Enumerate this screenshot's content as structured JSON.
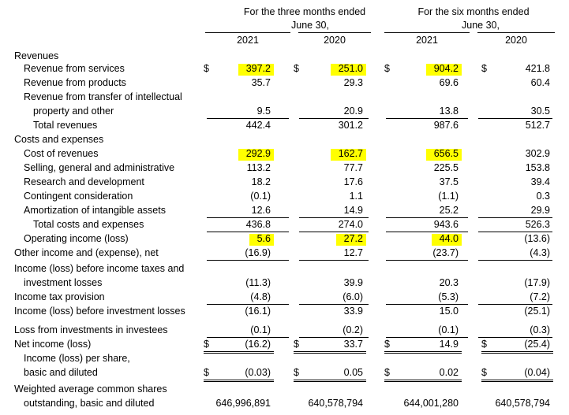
{
  "header": {
    "three_months": [
      "For the three months ended",
      "June 30,"
    ],
    "six_months": [
      "For the six months ended",
      "June 30,"
    ],
    "years": [
      "2021",
      "2020",
      "2021",
      "2020"
    ]
  },
  "currency_symbol": "$",
  "highlight_color": "#ffff00",
  "rows": [
    {
      "label": "Revenues",
      "indent": 0,
      "values": [
        "",
        "",
        "",
        ""
      ]
    },
    {
      "label": "Revenue from services",
      "indent": 1,
      "values": [
        "397.2",
        "251.0",
        "904.2",
        "421.8"
      ],
      "dollar": true,
      "highlight": [
        true,
        true,
        true,
        false
      ]
    },
    {
      "label": "Revenue from products",
      "indent": 1,
      "values": [
        "35.7",
        "29.3",
        "69.6",
        "60.4"
      ]
    },
    {
      "label": "Revenue from transfer of intellectual",
      "indent": 1,
      "values": [
        "",
        "",
        "",
        ""
      ]
    },
    {
      "label": "property and other",
      "indent": 2,
      "values": [
        "9.5",
        "20.9",
        "13.8",
        "30.5"
      ],
      "underline": true
    },
    {
      "label": "Total revenues",
      "indent": 2,
      "values": [
        "442.4",
        "301.2",
        "987.6",
        "512.7"
      ]
    },
    {
      "label": "Costs and expenses",
      "indent": 0,
      "values": [
        "",
        "",
        "",
        ""
      ]
    },
    {
      "label": "Cost of revenues",
      "indent": 1,
      "values": [
        "292.9",
        "162.7",
        "656.5",
        "302.9"
      ],
      "highlight": [
        true,
        true,
        true,
        false
      ]
    },
    {
      "label": "Selling, general and administrative",
      "indent": 1,
      "values": [
        "113.2",
        "77.7",
        "225.5",
        "153.8"
      ]
    },
    {
      "label": "Research and development",
      "indent": 1,
      "values": [
        "18.2",
        "17.6",
        "37.5",
        "39.4"
      ]
    },
    {
      "label": "Contingent consideration",
      "indent": 1,
      "values": [
        "(0.1)",
        "1.1",
        "(1.1)",
        "0.3"
      ]
    },
    {
      "label": "Amortization of intangible assets",
      "indent": 1,
      "values": [
        "12.6",
        "14.9",
        "25.2",
        "29.9"
      ],
      "underline": true
    },
    {
      "label": "Total costs and expenses",
      "indent": 2,
      "values": [
        "436.8",
        "274.0",
        "943.6",
        "526.3"
      ],
      "underline": true
    },
    {
      "label": "Operating income (loss)",
      "indent": 1,
      "values": [
        "5.6",
        "27.2",
        "44.0",
        "(13.6)"
      ],
      "highlight": [
        true,
        true,
        true,
        false
      ]
    },
    {
      "label": "Other income and (expense), net",
      "indent": 0,
      "values": [
        "(16.9)",
        "12.7",
        "(23.7)",
        "(4.3)"
      ],
      "underline": true
    },
    {
      "label": "Income (loss) before income taxes and",
      "indent": 0,
      "values": [
        "",
        "",
        "",
        ""
      ]
    },
    {
      "label": "investment losses",
      "indent": 1,
      "values": [
        "(11.3)",
        "39.9",
        "20.3",
        "(17.9)"
      ]
    },
    {
      "label": "Income tax provision",
      "indent": 0,
      "values": [
        "(4.8)",
        "(6.0)",
        "(5.3)",
        "(7.2)"
      ],
      "underline": true
    },
    {
      "label": "Income (loss) before investment losses",
      "indent": 0,
      "values": [
        "(16.1)",
        "33.9",
        "15.0",
        "(25.1)"
      ]
    },
    {
      "label": "Loss from investments in investees",
      "indent": 0,
      "values": [
        "(0.1)",
        "(0.2)",
        "(0.1)",
        "(0.3)"
      ],
      "underline": true
    },
    {
      "label": "Net income (loss)",
      "indent": 0,
      "values": [
        "(16.2)",
        "33.7",
        "14.9",
        "(25.4)"
      ],
      "dollar": true,
      "double_underline": true
    },
    {
      "label": "Income (loss) per share,",
      "indent": 1,
      "values": [
        "",
        "",
        "",
        ""
      ]
    },
    {
      "label": "basic and diluted",
      "indent": 1,
      "values": [
        "(0.03)",
        "0.05",
        "0.02",
        "(0.04)"
      ],
      "dollar": true,
      "double_underline": true
    },
    {
      "label": "Weighted average common shares",
      "indent": 0,
      "values": [
        "",
        "",
        "",
        ""
      ]
    },
    {
      "label": "outstanding, basic and diluted",
      "indent": 1,
      "values": [
        "646,996,891",
        "640,578,794",
        "644,001,280",
        "640,578,794"
      ]
    }
  ]
}
